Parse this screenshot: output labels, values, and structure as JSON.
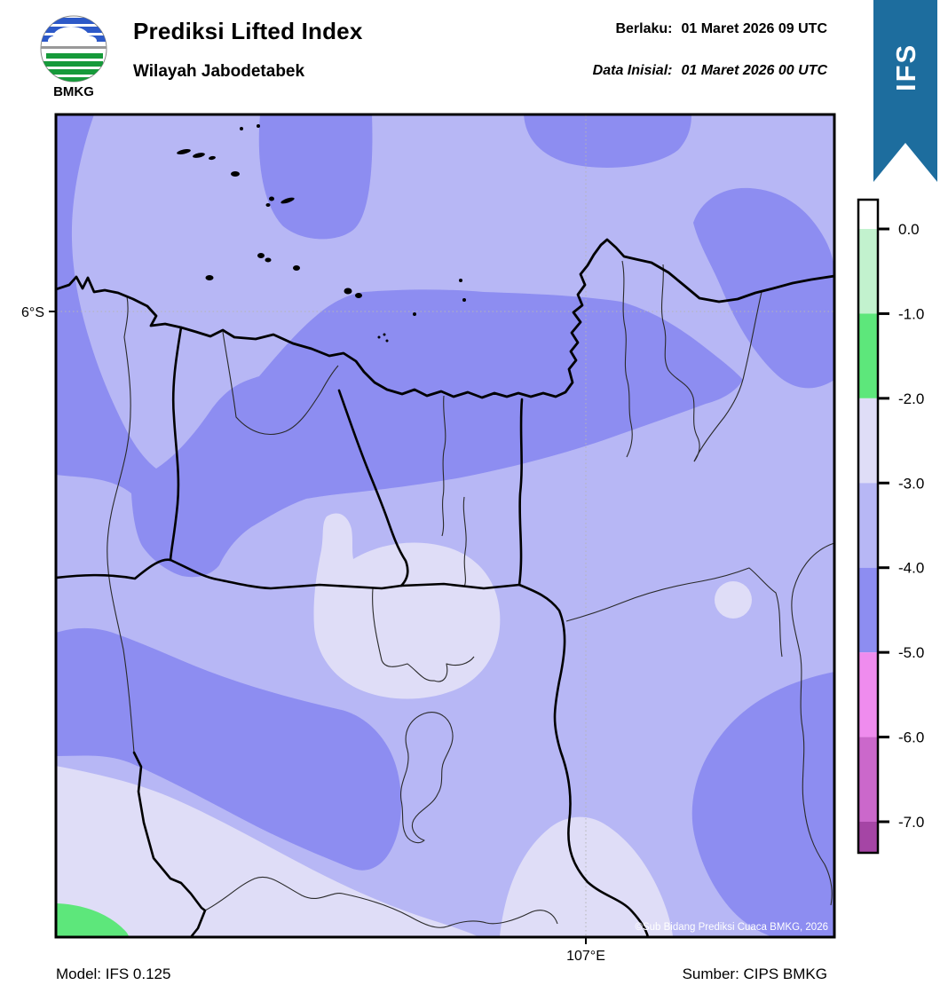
{
  "header": {
    "logo_text": "BMKG",
    "title": "Prediksi Lifted Index",
    "subtitle": "Wilayah Jabodetabek",
    "valid_label": "Berlaku:",
    "valid_value": "01 Maret 2026 09 UTC",
    "initial_label": "Data Inisial:",
    "initial_value": "01 Maret 2026 00 UTC",
    "ribbon_label": "IFS"
  },
  "map": {
    "lat_label": "6°S",
    "lon_label": "107°E",
    "copyright": "©Sub Bidang Prediksi Cuaca BMKG, 2026"
  },
  "footer": {
    "model": "Model: IFS 0.125",
    "source": "Sumber: CIPS BMKG"
  },
  "colorbar": {
    "tick_labels": [
      "0.0",
      "-1.0",
      "-2.0",
      "-3.0",
      "-4.0",
      "-5.0",
      "-6.0",
      "-7.0"
    ],
    "segment_colors_top_to_bottom": [
      "#ffffff",
      "#c2f2ce",
      "#5de77b",
      "#dfddf7",
      "#b7b7f5",
      "#8d8df1",
      "#ef8cee",
      "#cb68cb",
      "#a545a5"
    ]
  },
  "colors": {
    "ribbon": "#1d6d9e",
    "map_base_li_m3_m4": "#b7b7f5",
    "li_m4_m5": "#8d8df1",
    "li_m2_m3": "#dfddf7",
    "li_m1_m2": "#5de77b",
    "logo_blue": "#2d59c8",
    "logo_green": "#169a3a",
    "gridline": "#b5b5b5"
  }
}
